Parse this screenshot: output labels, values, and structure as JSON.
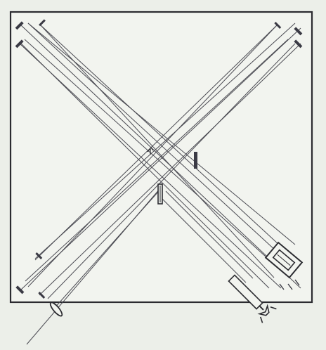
{
  "diagram": {
    "colors": {
      "background": "#ecefe9",
      "panel": "#f2f4ef",
      "ink": "#2b2b30",
      "mirror": "#3a3a44",
      "beam": "#4a4a52"
    },
    "components": [
      "mirror-bank-top-left",
      "mirror-bank-top-right",
      "mirror-bank-bottom-left",
      "beam-splitter",
      "compensator-plate",
      "light-source-lamp",
      "focusing-lens",
      "telescope-eyepiece",
      "adjustment-screw"
    ]
  }
}
